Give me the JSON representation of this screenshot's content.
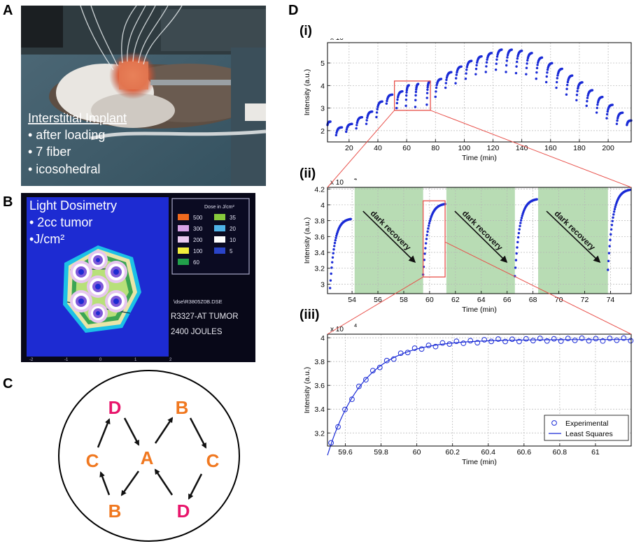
{
  "panels": {
    "a": {
      "letter": "A",
      "caption_title": "Interstitial Implant",
      "bullets": [
        "• after loading",
        "• 7 fiber",
        "• icosohedral"
      ]
    },
    "b": {
      "letter": "B",
      "caption_title": "Light Dosimetry",
      "bullets": [
        "• 2cc  tumor",
        "•J/cm²"
      ],
      "legend_title": "Dose in J/cm²",
      "legend": [
        {
          "value": "500",
          "color": "#f06a1e"
        },
        {
          "value": "35",
          "color": "#86c93c"
        },
        {
          "value": "300",
          "color": "#d8a3e6"
        },
        {
          "value": "20",
          "color": "#4fb3e8"
        },
        {
          "value": "200",
          "color": "#e9c9ef"
        },
        {
          "value": "10",
          "color": "#ffffff"
        },
        {
          "value": "100",
          "color": "#f2ee3c"
        },
        {
          "value": "5",
          "color": "#2a44c8"
        },
        {
          "value": "60",
          "color": "#21a04a"
        }
      ],
      "filename": "\\dse\\R3805Z0B.DSE",
      "tumor_label": "R3327-AT TUMOR",
      "energy_label": "2400 JOULES",
      "axis_ticks": [
        "-2",
        "-1",
        "0",
        "1",
        "2"
      ]
    },
    "c": {
      "letter": "C",
      "nodes": {
        "d_top": "D",
        "b_top": "B",
        "c_left": "C",
        "a_center": "A",
        "c_right": "C",
        "b_bottom": "B",
        "d_bottom": "D"
      },
      "colors": {
        "pink": "#e8156b",
        "orange": "#f07820"
      }
    },
    "d": {
      "letter": "D"
    }
  },
  "chart_data": [
    {
      "id": "i",
      "label": "(i)",
      "type": "scatter",
      "xlabel": "Time (min)",
      "ylabel": "Intensity (a.u.)",
      "exponent_label": "x 10",
      "exponent_power": "4",
      "xlim": [
        5,
        216
      ],
      "ylim": [
        1.5,
        5.9
      ],
      "xticks": [
        20,
        40,
        60,
        80,
        100,
        120,
        140,
        160,
        180,
        200
      ],
      "yticks": [
        2,
        3,
        4,
        5
      ],
      "grid": true,
      "color": "#1a2bd6",
      "segments": [
        {
          "x0": 5,
          "x1": 7,
          "y_start": 2.25,
          "y_end": 2.4
        },
        {
          "x0": 11,
          "x1": 15,
          "y_start": 1.8,
          "y_end": 2.15
        },
        {
          "x0": 18,
          "x1": 22,
          "y_start": 1.95,
          "y_end": 2.3
        },
        {
          "x0": 25,
          "x1": 29,
          "y_start": 2.1,
          "y_end": 2.6
        },
        {
          "x0": 32,
          "x1": 36,
          "y_start": 2.3,
          "y_end": 2.85
        },
        {
          "x0": 39,
          "x1": 43,
          "y_start": 2.6,
          "y_end": 3.3
        },
        {
          "x0": 46,
          "x1": 50,
          "y_start": 3.2,
          "y_end": 3.6
        },
        {
          "x0": 53,
          "x1": 57,
          "y_start": 3.0,
          "y_end": 3.75
        },
        {
          "x0": 59.5,
          "x1": 61.5,
          "y_start": 3.1,
          "y_end": 4.02
        },
        {
          "x0": 66,
          "x1": 68,
          "y_start": 3.05,
          "y_end": 4.08
        },
        {
          "x0": 74,
          "x1": 76,
          "y_start": 3.15,
          "y_end": 4.18
        },
        {
          "x0": 80,
          "x1": 84,
          "y_start": 3.5,
          "y_end": 4.3
        },
        {
          "x0": 87,
          "x1": 91,
          "y_start": 3.9,
          "y_end": 4.6
        },
        {
          "x0": 94,
          "x1": 98,
          "y_start": 4.1,
          "y_end": 4.85
        },
        {
          "x0": 101,
          "x1": 105,
          "y_start": 4.3,
          "y_end": 5.1
        },
        {
          "x0": 108,
          "x1": 112,
          "y_start": 4.5,
          "y_end": 5.3
        },
        {
          "x0": 115,
          "x1": 119,
          "y_start": 4.6,
          "y_end": 5.45
        },
        {
          "x0": 122,
          "x1": 126,
          "y_start": 4.7,
          "y_end": 5.6
        },
        {
          "x0": 129,
          "x1": 133,
          "y_start": 4.6,
          "y_end": 5.6
        },
        {
          "x0": 136,
          "x1": 140,
          "y_start": 4.55,
          "y_end": 5.55
        },
        {
          "x0": 143,
          "x1": 147,
          "y_start": 4.5,
          "y_end": 5.45
        },
        {
          "x0": 150,
          "x1": 154,
          "y_start": 4.3,
          "y_end": 5.25
        },
        {
          "x0": 157,
          "x1": 161,
          "y_start": 4.15,
          "y_end": 5.0
        },
        {
          "x0": 164,
          "x1": 168,
          "y_start": 3.9,
          "y_end": 4.75
        },
        {
          "x0": 171,
          "x1": 175,
          "y_start": 3.6,
          "y_end": 4.45
        },
        {
          "x0": 178,
          "x1": 182,
          "y_start": 3.35,
          "y_end": 4.15
        },
        {
          "x0": 185,
          "x1": 189,
          "y_start": 3.1,
          "y_end": 3.8
        },
        {
          "x0": 192,
          "x1": 196,
          "y_start": 2.8,
          "y_end": 3.5
        },
        {
          "x0": 199,
          "x1": 203,
          "y_start": 2.55,
          "y_end": 3.15
        },
        {
          "x0": 206,
          "x1": 210,
          "y_start": 2.3,
          "y_end": 2.8
        },
        {
          "x0": 213,
          "x1": 216,
          "y_start": 2.25,
          "y_end": 2.45
        }
      ],
      "zoom_box": {
        "x": [
          51.5,
          76.5
        ],
        "y": [
          2.9,
          4.2
        ]
      }
    },
    {
      "id": "ii",
      "label": "(ii)",
      "type": "scatter",
      "xlabel": "Time (min)",
      "ylabel": "Intensity (a.u.)",
      "exponent_label": "x 10",
      "exponent_power": "4",
      "xlim": [
        52.1,
        75.6
      ],
      "ylim": [
        2.88,
        4.22
      ],
      "xticks": [
        54,
        56,
        58,
        60,
        62,
        64,
        66,
        68,
        70,
        72,
        74
      ],
      "yticks": [
        3,
        3.2,
        3.4,
        3.6,
        3.8,
        4,
        4.2
      ],
      "grid": true,
      "color": "#1a2bd6",
      "segments": [
        {
          "x0": 52.3,
          "x1": 53.9,
          "y_start": 2.95,
          "y_end": 3.83
        },
        {
          "x0": 59.5,
          "x1": 61.2,
          "y_start": 3.12,
          "y_end": 4.02
        },
        {
          "x0": 66.6,
          "x1": 68.3,
          "y_start": 3.1,
          "y_end": 4.08
        },
        {
          "x0": 73.8,
          "x1": 75.5,
          "y_start": 3.18,
          "y_end": 4.2
        }
      ],
      "shaded_regions": [
        [
          54.2,
          59.5
        ],
        [
          61.3,
          66.6
        ],
        [
          68.4,
          73.8
        ]
      ],
      "shade_color": "#b8dcb4",
      "annotation": "dark recovery",
      "zoom_box": {
        "x": [
          59.5,
          61.2
        ],
        "y": [
          3.09,
          4.05
        ]
      }
    },
    {
      "id": "iii",
      "label": "(iii)",
      "type": "scatter",
      "xlabel": "Time (min)",
      "ylabel": "Intensity (a.u.)",
      "exponent_label": "x 10",
      "exponent_power": "4",
      "xlim": [
        59.5,
        61.2
      ],
      "ylim": [
        3.09,
        4.03
      ],
      "xticks": [
        59.6,
        59.8,
        60,
        60.2,
        60.4,
        60.6,
        60.8,
        61
      ],
      "xtick_labels": [
        "59.6",
        "59.8",
        "60",
        "60.2",
        "60.4",
        "60.6",
        "60.8",
        "61"
      ],
      "yticks": [
        3.2,
        3.4,
        3.6,
        3.8,
        4
      ],
      "grid": true,
      "color": "#1a2bd6",
      "fit": {
        "y_inf": 3.985,
        "amplitude": 0.88,
        "tau": 0.2,
        "t0": 59.52
      },
      "legend": [
        {
          "label": "Experimental",
          "marker": "circle"
        },
        {
          "label": "Least Squares",
          "marker": "line"
        }
      ],
      "legend_position": "bottom-right"
    }
  ]
}
